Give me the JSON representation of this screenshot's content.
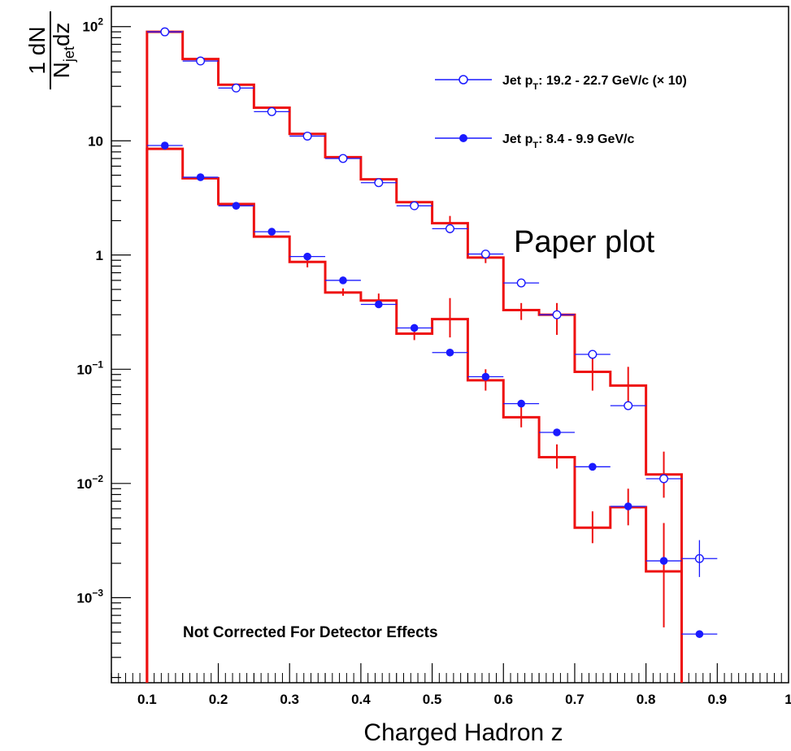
{
  "chart_data": {
    "type": "line",
    "xlabel": "Charged Hadron z",
    "ylabel": {
      "numerator": "1 dN",
      "denominator_main": "N",
      "denominator_sub": "jet",
      "denominator_tail": "dz"
    },
    "xlim": [
      0.05,
      1.0
    ],
    "ylim": [
      0.00018,
      150
    ],
    "yscale": "log",
    "x_tick_labels": [
      "0.1",
      "0.2",
      "0.3",
      "0.4",
      "0.5",
      "0.6",
      "0.7",
      "0.8",
      "0.9",
      "1"
    ],
    "x_ticks": [
      0.1,
      0.2,
      0.3,
      0.4,
      0.5,
      0.6,
      0.7,
      0.8,
      0.9,
      1.0
    ],
    "y_ticks": [
      {
        "value": 100,
        "base": "10",
        "exp": "2"
      },
      {
        "value": 10,
        "base": "10",
        "exp": ""
      },
      {
        "value": 1,
        "base": "1",
        "exp": ""
      },
      {
        "value": 0.1,
        "base": "10",
        "exp": "−1"
      },
      {
        "value": 0.01,
        "base": "10",
        "exp": "−2"
      },
      {
        "value": 0.001,
        "base": "10",
        "exp": "−3"
      }
    ],
    "bin_edges": [
      0.1,
      0.15,
      0.2,
      0.25,
      0.3,
      0.35,
      0.4,
      0.45,
      0.5,
      0.55,
      0.6,
      0.65,
      0.7,
      0.75,
      0.8,
      0.85,
      0.9
    ],
    "series": [
      {
        "name": "Jet pT: 19.2 - 22.7 GeV/c (× 10)",
        "legend_label": {
          "pre": "Jet p",
          "sub": "T",
          "post": ": 19.2 - 22.7 GeV/c (× 10)"
        },
        "marker": "open-circle",
        "color": "#1a1aff",
        "x": [
          0.125,
          0.175,
          0.225,
          0.275,
          0.325,
          0.375,
          0.425,
          0.475,
          0.525,
          0.575,
          0.625,
          0.675,
          0.725,
          0.775,
          0.825,
          0.875
        ],
        "y": [
          90,
          50,
          29,
          18,
          11,
          7,
          4.3,
          2.7,
          1.7,
          1.02,
          0.57,
          0.3,
          0.135,
          0.048,
          0.011,
          0.0022
        ]
      },
      {
        "name": "Jet pT: 8.4 - 9.9 GeV/c",
        "legend_label": {
          "pre": "Jet p",
          "sub": "T",
          "post": ": 8.4 - 9.9 GeV/c"
        },
        "marker": "filled-circle",
        "color": "#1a1aff",
        "x": [
          0.125,
          0.175,
          0.225,
          0.275,
          0.325,
          0.375,
          0.425,
          0.475,
          0.525,
          0.575,
          0.625,
          0.675,
          0.725,
          0.775,
          0.825,
          0.875
        ],
        "y": [
          9.1,
          4.8,
          2.7,
          1.6,
          0.97,
          0.6,
          0.37,
          0.23,
          0.14,
          0.086,
          0.05,
          0.028,
          0.014,
          0.0063,
          0.0021,
          0.00048
        ]
      }
    ],
    "histograms": [
      {
        "color": "#ee1111",
        "values": [
          90,
          52,
          31,
          19.5,
          11.5,
          7.2,
          4.6,
          2.9,
          1.9,
          0.95,
          0.33,
          0.3,
          0.095,
          0.072,
          0.012,
          null
        ],
        "errors": [
          null,
          null,
          null,
          null,
          null,
          null,
          null,
          null,
          [
            1.55,
            2.2
          ],
          [
            0.85,
            1.05
          ],
          [
            0.27,
            0.38
          ],
          [
            0.2,
            0.38
          ],
          [
            0.065,
            0.14
          ],
          [
            0.045,
            0.105
          ],
          [
            0.0075,
            0.019
          ],
          null
        ]
      },
      {
        "color": "#ee1111",
        "values": [
          8.5,
          4.7,
          2.8,
          1.45,
          0.87,
          0.47,
          0.4,
          0.205,
          0.275,
          0.08,
          0.038,
          0.017,
          0.0041,
          0.0062,
          0.0017,
          null
        ],
        "errors": [
          null,
          null,
          null,
          null,
          [
            0.78,
            0.97
          ],
          [
            0.44,
            0.51
          ],
          [
            0.35,
            0.46
          ],
          [
            0.18,
            0.24
          ],
          [
            0.19,
            0.42
          ],
          [
            0.065,
            0.1
          ],
          [
            0.031,
            0.048
          ],
          [
            0.0135,
            0.022
          ],
          [
            0.003,
            0.0057
          ],
          [
            0.0043,
            0.009
          ],
          [
            0.00055,
            0.0045
          ],
          null
        ]
      }
    ],
    "annotation": "Not Corrected For Detector Effects",
    "overlay_text": "Paper plot",
    "legend_position": "top-right",
    "grid": false
  }
}
